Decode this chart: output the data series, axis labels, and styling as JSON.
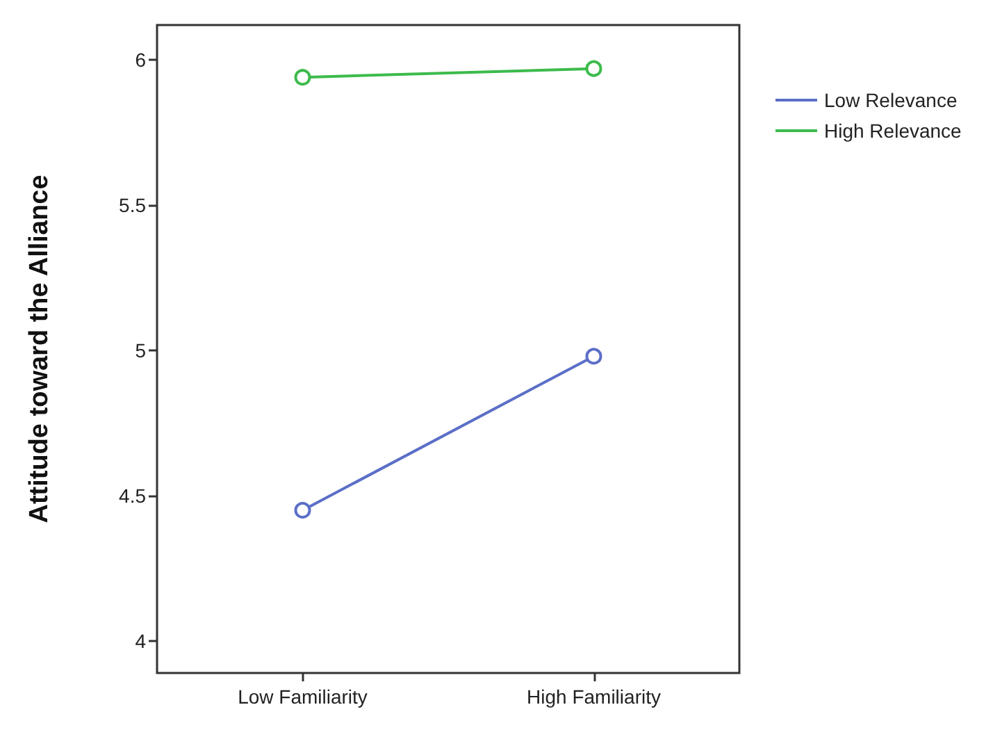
{
  "chart_data": {
    "type": "line",
    "ylabel": "Attitude toward the Alliance",
    "categories": [
      "Low Familiarity",
      "High Familiarity"
    ],
    "series": [
      {
        "name": "Low Relevance",
        "color": "#5b6fc7",
        "values": [
          4.45,
          4.98
        ]
      },
      {
        "name": "High Relevance",
        "color": "#3cbb4c",
        "values": [
          5.94,
          5.97
        ]
      }
    ],
    "ylim": [
      3.89,
      6.12
    ],
    "yticks": [
      4,
      4.5,
      5,
      5.5,
      6
    ],
    "grid": false,
    "legend": "top right",
    "marker": "circle",
    "line_style": "solid"
  }
}
